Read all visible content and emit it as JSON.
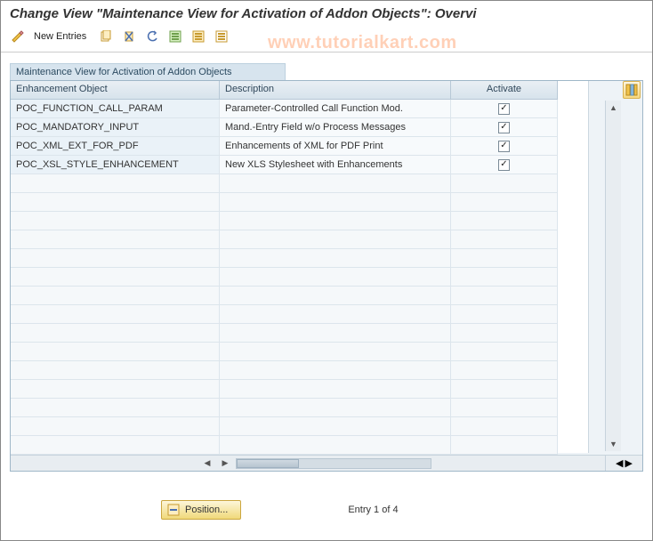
{
  "title": "Change View \"Maintenance View for Activation of Addon Objects\": Overvi",
  "watermark": "www.tutorialkart.com",
  "toolbar": {
    "new_entries": "New Entries"
  },
  "panel_label": "Maintenance View for Activation of Addon Objects",
  "columns": {
    "c1": "Enhancement Object",
    "c2": "Description",
    "c3": "Activate"
  },
  "rows": [
    {
      "obj": "POC_FUNCTION_CALL_PARAM",
      "desc": "Parameter-Controlled Call Function Mod.",
      "active": true
    },
    {
      "obj": "POC_MANDATORY_INPUT",
      "desc": "Mand.-Entry Field w/o Process Messages",
      "active": true
    },
    {
      "obj": "POC_XML_EXT_FOR_PDF",
      "desc": "Enhancements of XML for PDF Print",
      "active": true
    },
    {
      "obj": "POC_XSL_STYLE_ENHANCEMENT",
      "desc": "New XLS Stylesheet with Enhancements",
      "active": true
    }
  ],
  "empty_rows": 15,
  "footer": {
    "position_btn": "Position...",
    "entry_text": "Entry 1 of 4"
  },
  "colors": {
    "header_bg": "#d7e3ec",
    "row_bg": "#f7fafc",
    "row_first_bg": "#eaf2f8",
    "border": "#9fb7c8"
  }
}
